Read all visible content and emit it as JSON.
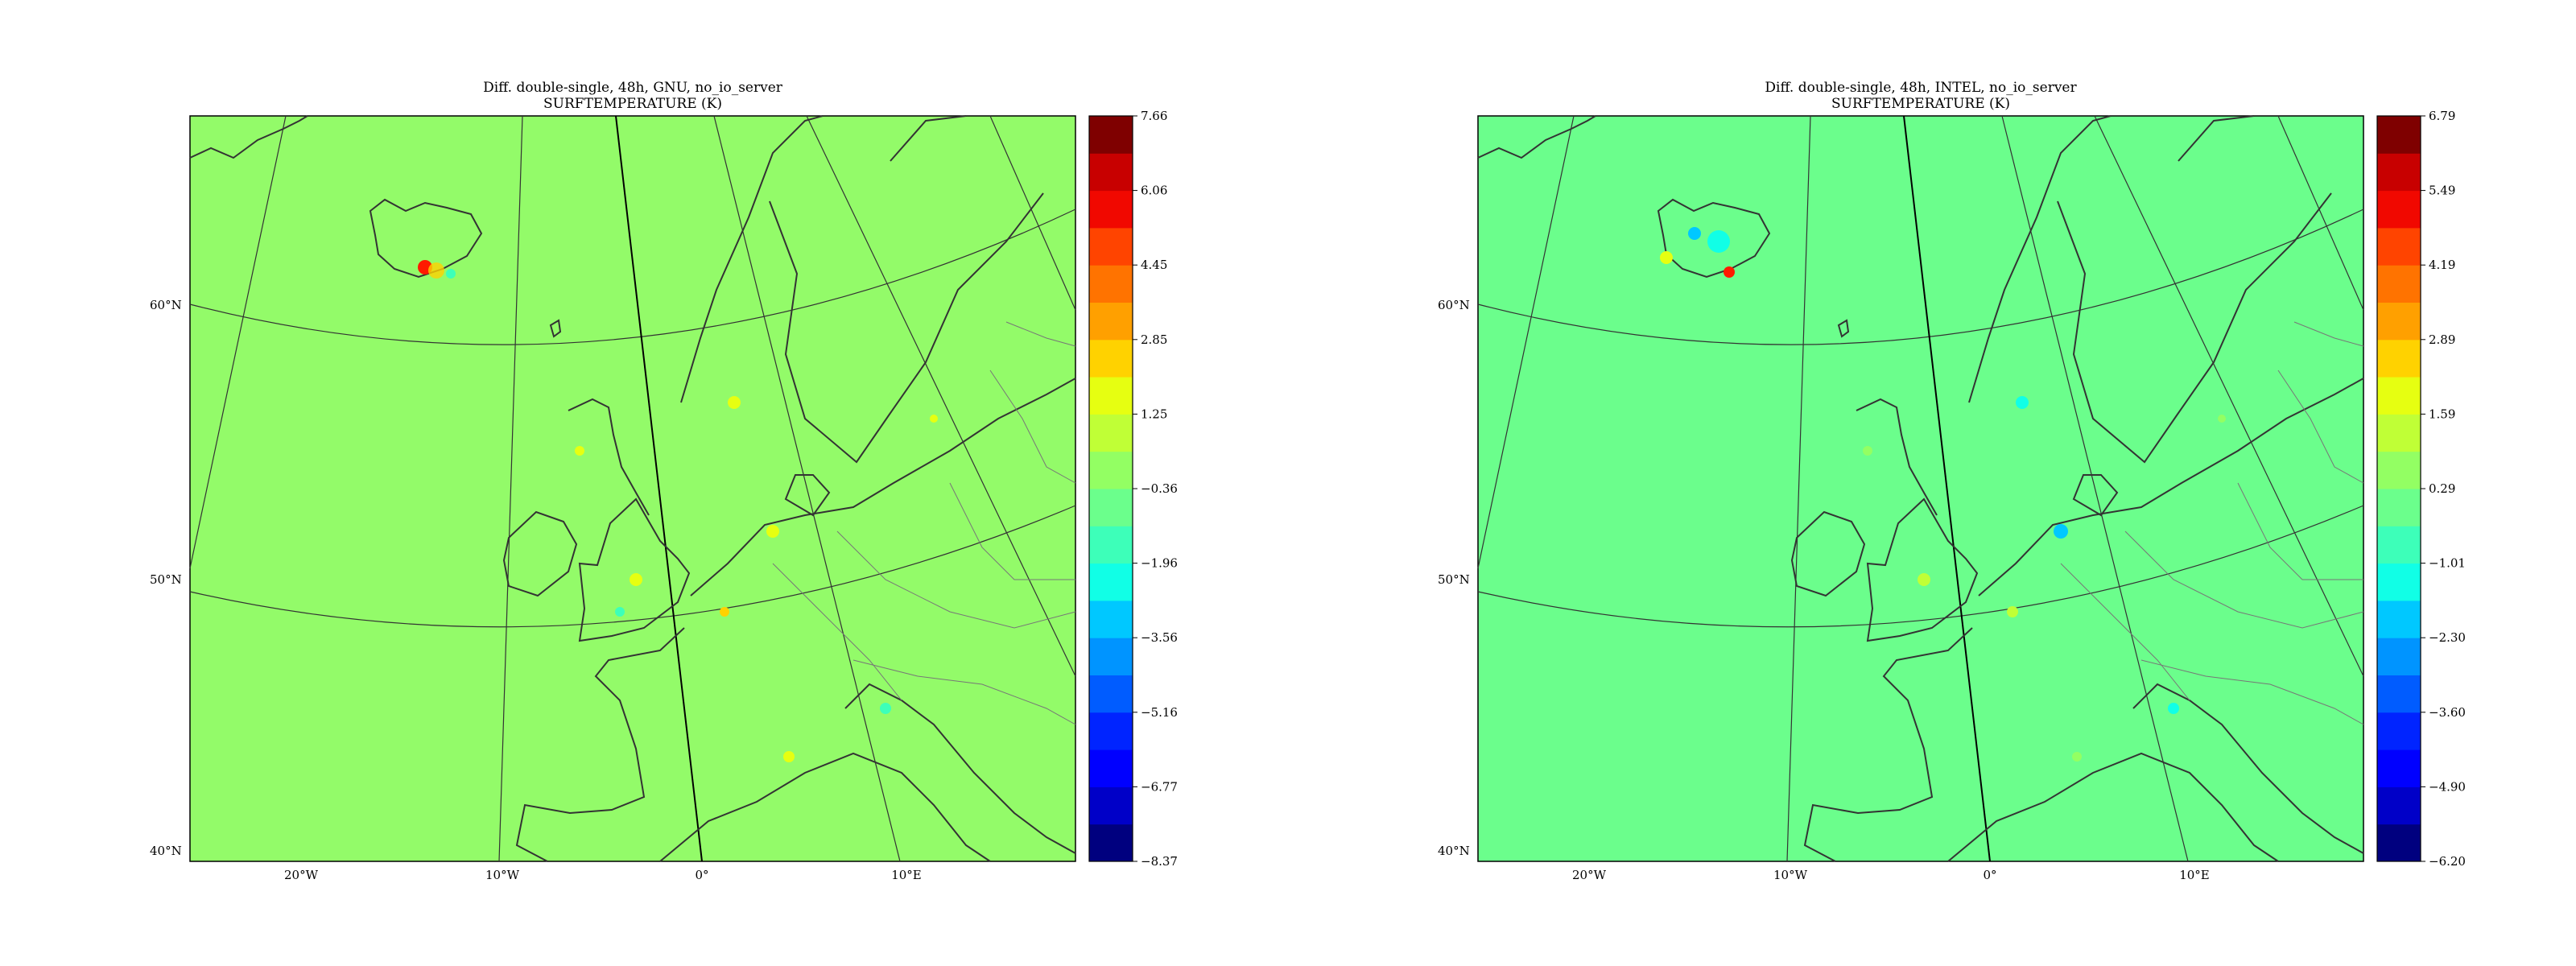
{
  "panels": [
    {
      "title_line1": "Diff. double-single, 48h, GNU, no_io_server",
      "title_line2": "SURFTEMPERATURE (K)",
      "background_color": "#93fb69",
      "colorbar_ticks": [
        "7.66",
        "6.06",
        "4.45",
        "2.85",
        "1.25",
        "−0.36",
        "−1.96",
        "−3.56",
        "−5.16",
        "−6.77",
        "−8.37"
      ]
    },
    {
      "title_line1": "Diff. double-single, 48h, INTEL, no_io_server",
      "title_line2": "SURFTEMPERATURE (K)",
      "background_color": "#6bfe8c",
      "colorbar_ticks": [
        "6.79",
        "5.49",
        "4.19",
        "2.89",
        "1.59",
        "0.29",
        "−1.01",
        "−2.30",
        "−3.60",
        "−4.90",
        "−6.20"
      ]
    }
  ],
  "lat_labels": [
    "60°N",
    "50°N",
    "40°N"
  ],
  "lon_labels": [
    "20°W",
    "10°W",
    "0°",
    "10°E"
  ],
  "colorbar_colors": [
    "#00007f",
    "#0000c8",
    "#0000ff",
    "#0024ff",
    "#005cff",
    "#0094ff",
    "#00c8ff",
    "#11ffe6",
    "#3dffb9",
    "#6bff8c",
    "#93ff63",
    "#c0ff36",
    "#e6ff11",
    "#ffd200",
    "#ffa000",
    "#ff7300",
    "#ff4400",
    "#f10800",
    "#c80000",
    "#7f0000"
  ],
  "coastline_color": "#333333",
  "grid_color": "#333333"
}
